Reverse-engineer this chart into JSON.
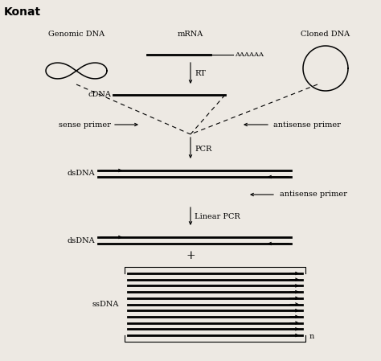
{
  "title": "Konat",
  "background_color": "#ede9e3",
  "fig_width": 4.74,
  "fig_height": 4.49,
  "labels": {
    "genomic_dna": "Genomic DNA",
    "mrna": "mRNA",
    "cloned_dna": "Cloned DNA",
    "rt": "RT",
    "cdna": "cDNA",
    "sense_primer": "sense primer",
    "antisense_primer1": "antisense primer",
    "pcr": "PCR",
    "dsdna1": "dsDNA",
    "antisense_primer2": "antisense primer",
    "linear_pcr": "Linear PCR",
    "dsdna2": "dsDNA",
    "ssdna": "ssDNA",
    "n": "n",
    "aaaaaa": "AAAAAA",
    "plus": "+"
  }
}
